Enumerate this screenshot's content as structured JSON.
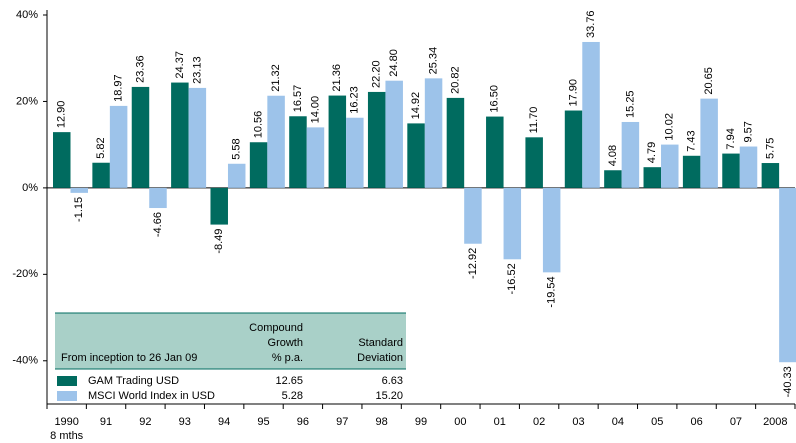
{
  "chart_data": {
    "type": "bar",
    "categories": [
      "1990",
      "91",
      "92",
      "93",
      "94",
      "95",
      "96",
      "97",
      "98",
      "99",
      "00",
      "01",
      "02",
      "03",
      "04",
      "05",
      "06",
      "07",
      "2008"
    ],
    "category_note": "8 mths",
    "series": [
      {
        "name": "GAM Trading USD",
        "color": "#006b5f",
        "values": [
          12.9,
          5.82,
          23.36,
          24.37,
          -8.49,
          10.56,
          16.57,
          21.36,
          22.2,
          14.92,
          20.82,
          16.5,
          11.7,
          17.9,
          4.08,
          4.79,
          7.43,
          7.94,
          5.75
        ],
        "value_labels": [
          "12.90",
          "5.82",
          "23.36",
          "24.37",
          "-8.49",
          "10.56",
          "16.57",
          "21.36",
          "22.20",
          "14.92",
          "20.82",
          "16.50",
          "11.70",
          "17.90",
          "4.08",
          "4.79",
          "7.43",
          "7.94",
          "5.75"
        ]
      },
      {
        "name": "MSCI World Index in USD",
        "color": "#9dc3ea",
        "values": [
          -1.15,
          18.97,
          -4.66,
          23.13,
          5.58,
          21.32,
          14.0,
          16.23,
          24.8,
          25.34,
          -12.92,
          -16.52,
          -19.54,
          33.76,
          15.25,
          10.02,
          20.65,
          9.57,
          -40.33
        ],
        "value_labels": [
          "-1.15",
          "18.97",
          "-4.66",
          "23.13",
          "5.58",
          "21.32",
          "14.00",
          "16.23",
          "24.80",
          "25.34",
          "-12.92",
          "-16.52",
          "-19.54",
          "33.76",
          "15.25",
          "10.02",
          "20.65",
          "9.57",
          "-40.33"
        ]
      }
    ],
    "ylim": [
      -50,
      40
    ],
    "yticks": [
      {
        "value": -40,
        "label": "-40%"
      },
      {
        "value": -20,
        "label": "-20%"
      },
      {
        "value": 0,
        "label": "0%"
      },
      {
        "value": 20,
        "label": "20%"
      },
      {
        "value": 40,
        "label": "40%"
      }
    ],
    "table": {
      "caption": "From inception to 26 Jan 09",
      "columns": [
        [
          "Compound",
          "Growth",
          "% p.a."
        ],
        [
          "Standard",
          "Deviation"
        ]
      ],
      "rows": [
        [
          "12.65",
          "6.63"
        ],
        [
          "5.28",
          "15.20"
        ]
      ]
    }
  }
}
